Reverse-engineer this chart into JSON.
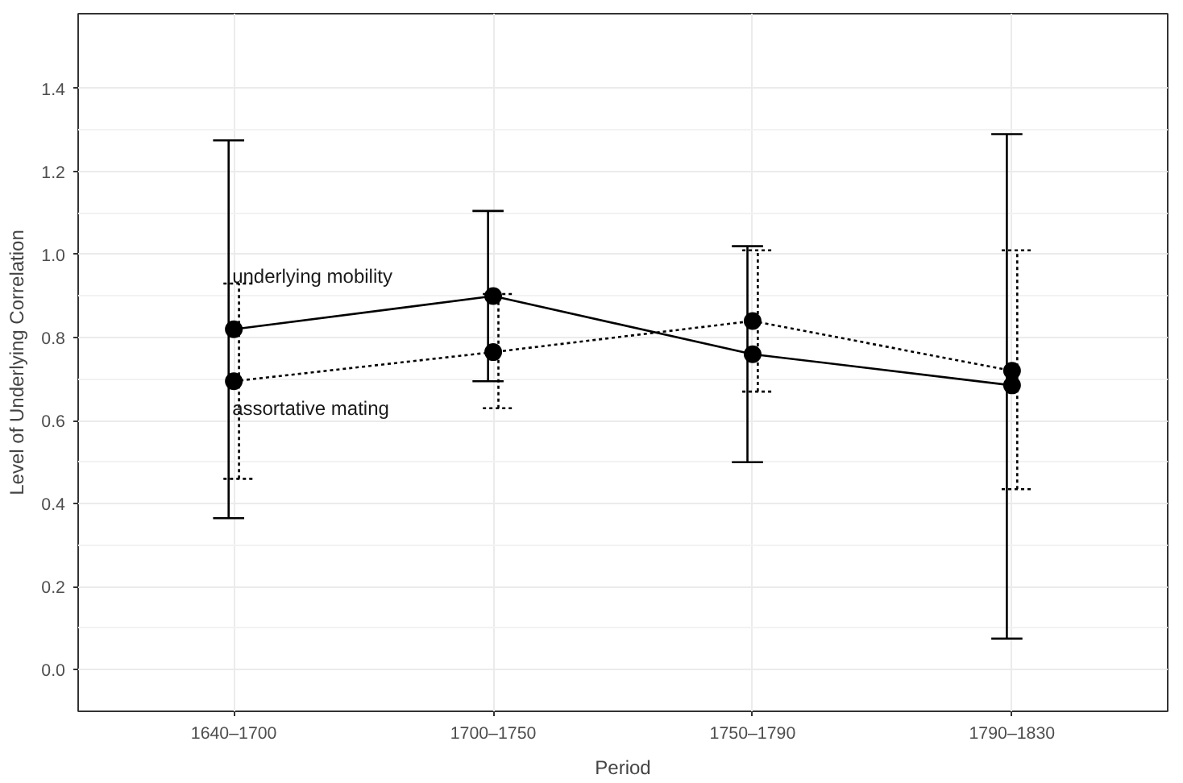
{
  "chart_data": {
    "type": "line",
    "xlabel": "Period",
    "ylabel": "Level of Underlying Correlation",
    "categories": [
      "1640–1700",
      "1700–1750",
      "1750–1790",
      "1790–1830"
    ],
    "series": [
      {
        "name": "underlying mobility",
        "color": "#000000",
        "line_style": "solid",
        "values": [
          0.82,
          0.9,
          0.76,
          0.685
        ],
        "errors": [
          [
            0.365,
            1.275
          ],
          [
            0.695,
            1.105
          ],
          [
            0.5,
            1.02
          ],
          [
            0.075,
            1.29
          ]
        ]
      },
      {
        "name": "assortative mating",
        "color": "#000000",
        "line_style": "dotted",
        "values": [
          0.695,
          0.765,
          0.84,
          0.72
        ],
        "errors": [
          [
            0.46,
            0.93
          ],
          [
            0.63,
            0.905
          ],
          [
            0.67,
            1.01
          ],
          [
            0.435,
            1.01
          ]
        ]
      }
    ],
    "marker": "circle",
    "grid": true,
    "ylim": [
      -0.1,
      1.58
    ],
    "yticks": [
      {
        "value": 0.0,
        "label": "0.0"
      },
      {
        "value": 0.2,
        "label": "0.2"
      },
      {
        "value": 0.4,
        "label": "0.4"
      },
      {
        "value": 0.6,
        "label": "0.6"
      },
      {
        "value": 0.8,
        "label": "0.8"
      },
      {
        "value": 1.0,
        "label": "1.0"
      },
      {
        "value": 1.2,
        "label": "1.2"
      },
      {
        "value": 1.4,
        "label": "1.4"
      }
    ]
  }
}
